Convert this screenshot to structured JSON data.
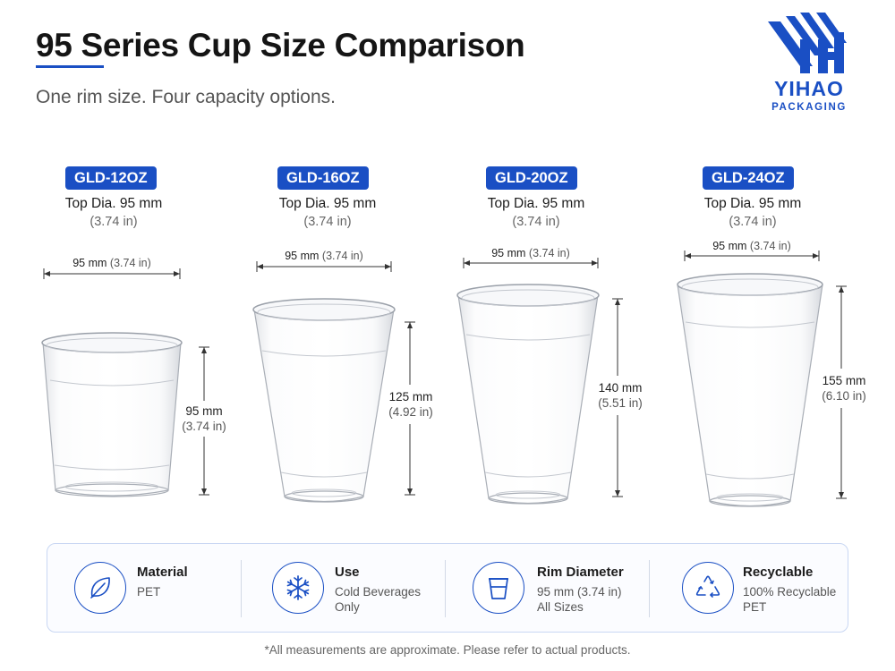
{
  "header": {
    "title": "95 Series Cup Size Comparison",
    "subtitle": "One rim size. Four capacity options."
  },
  "logo": {
    "icon": "yh-monogram-icon",
    "name": "YIHAO",
    "tagline": "PACKAGING",
    "color": "#1a4fc4"
  },
  "cups": [
    {
      "model": "GLD-12OZ",
      "top_dia": "Top Dia. 95 mm",
      "top_dia_in": "(3.74 in)",
      "rim_mm": "95 mm",
      "rim_in": "(3.74 in)",
      "height_mm": "95 mm",
      "height_in": "(3.74 in)"
    },
    {
      "model": "GLD-16OZ",
      "top_dia": "Top Dia. 95 mm",
      "top_dia_in": "(3.74 in)",
      "rim_mm": "95 mm",
      "rim_in": "(3.74 in)",
      "height_mm": "125 mm",
      "height_in": "(4.92 in)"
    },
    {
      "model": "GLD-20OZ",
      "top_dia": "Top Dia. 95 mm",
      "top_dia_in": "(3.74 in)",
      "rim_mm": "95 mm",
      "rim_in": "(3.74 in)",
      "height_mm": "140 mm",
      "height_in": "(5.51 in)"
    },
    {
      "model": "GLD-24OZ",
      "top_dia": "Top Dia. 95 mm",
      "top_dia_in": "(3.74 in)",
      "rim_mm": "95 mm",
      "rim_in": "(3.74 in)",
      "height_mm": "155 mm",
      "height_in": "(6.10 in)"
    }
  ],
  "features": [
    {
      "icon": "leaf-icon",
      "title": "Material",
      "lines": [
        "PET"
      ]
    },
    {
      "icon": "snowflake-icon",
      "title": "Use",
      "lines": [
        "Cold Beverages",
        "Only"
      ]
    },
    {
      "icon": "cup-icon",
      "title": "Rim Diameter",
      "lines": [
        "95 mm (3.74 in)",
        "All Sizes"
      ]
    },
    {
      "icon": "recycle-icon",
      "title": "Recyclable",
      "lines": [
        "100% Recyclable",
        "PET"
      ]
    }
  ],
  "footnote": "*All measurements are approximate. Please refer to actual products.",
  "colors": {
    "accent": "#1a4fc4",
    "text": "#1c1c1c",
    "muted": "#666666"
  }
}
